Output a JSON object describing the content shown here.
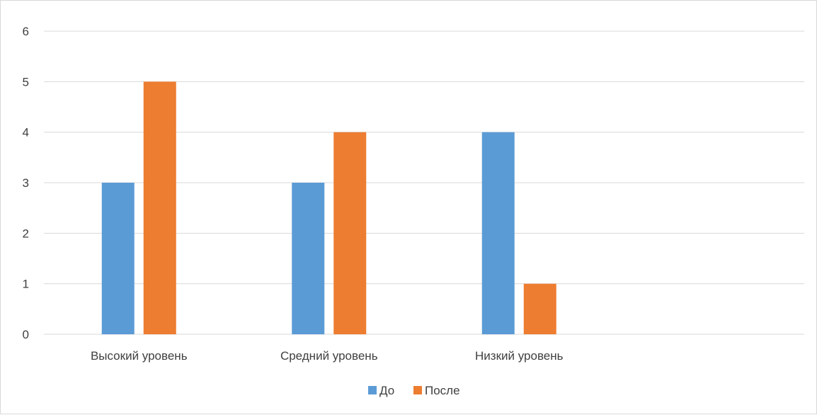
{
  "chart_data": {
    "type": "bar",
    "title": "",
    "xlabel": "",
    "ylabel": "",
    "categories": [
      "Высокий уровень",
      "Средний уровень",
      "Низкий уровень",
      ""
    ],
    "series": [
      {
        "name": "До",
        "values": [
          3,
          3,
          4,
          null
        ],
        "color": "#5B9BD5"
      },
      {
        "name": "После",
        "values": [
          5,
          4,
          1,
          null
        ],
        "color": "#ED7D31"
      }
    ],
    "ylim": [
      0,
      6
    ],
    "yticks": [
      0,
      1,
      2,
      3,
      4,
      5,
      6
    ],
    "grid": true,
    "legend": "bottom"
  }
}
